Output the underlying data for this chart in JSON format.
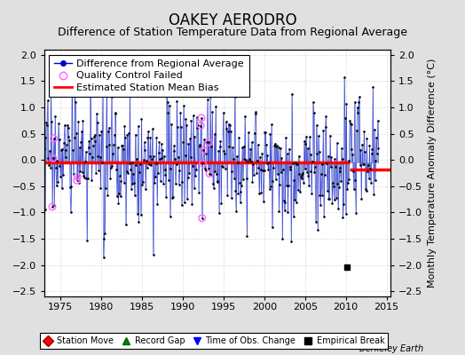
{
  "title": "OAKEY AERODRO",
  "subtitle": "Difference of Station Temperature Data from Regional Average",
  "ylabel": "Monthly Temperature Anomaly Difference (°C)",
  "xlim": [
    1973.0,
    2015.5
  ],
  "ylim": [
    -2.6,
    2.1
  ],
  "yticks": [
    -2.5,
    -2,
    -1.5,
    -1,
    -0.5,
    0,
    0.5,
    1,
    1.5,
    2
  ],
  "xticks": [
    1975,
    1980,
    1985,
    1990,
    1995,
    2000,
    2005,
    2010,
    2015
  ],
  "bias_line_y1": -0.05,
  "bias_line_y2": -0.18,
  "bias_break_x": 2010.5,
  "empirical_break_x": 2010.2,
  "empirical_break_y": -2.05,
  "background_color": "#e0e0e0",
  "plot_bg_color": "#ffffff",
  "stem_color": "#6688cc",
  "line_color": "#0000cc",
  "dot_color": "#000000",
  "bias_color": "#ff0000",
  "qc_color": "#ff66ff",
  "seed": 17,
  "n_points": 492,
  "start_year": 1973.0,
  "end_year": 2014.0,
  "title_fontsize": 12,
  "subtitle_fontsize": 9,
  "legend_fontsize": 8,
  "tick_fontsize": 8,
  "ylabel_fontsize": 8,
  "qc_indices": [
    12,
    13,
    14,
    48,
    49,
    230,
    231,
    232,
    233,
    234,
    242,
    243
  ]
}
